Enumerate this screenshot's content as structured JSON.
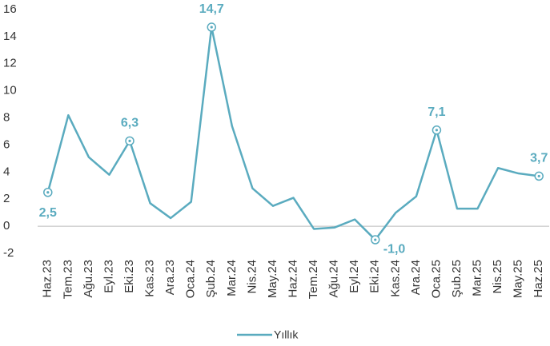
{
  "chart_data": {
    "type": "line",
    "categories": [
      "Haz.23",
      "Tem.23",
      "Ağu.23",
      "Eyl.23",
      "Eki.23",
      "Kas.23",
      "Ara.23",
      "Oca.24",
      "Şub.24",
      "Mar.24",
      "Nis.24",
      "May.24",
      "Haz.24",
      "Tem.24",
      "Ağu.24",
      "Eyl.24",
      "Eki.24",
      "Kas.24",
      "Ara.24",
      "Oca.25",
      "Şub.25",
      "Mar.25",
      "Nis.25",
      "May.25",
      "Haz.25"
    ],
    "series": [
      {
        "name": "Yıllık",
        "color": "#5aabbf",
        "values": [
          2.5,
          8.2,
          5.1,
          3.8,
          6.3,
          1.7,
          0.6,
          1.8,
          14.7,
          7.4,
          2.8,
          1.5,
          2.1,
          -0.2,
          -0.1,
          0.5,
          -1.0,
          1.0,
          2.2,
          7.1,
          1.3,
          1.3,
          4.3,
          3.9,
          3.7
        ],
        "value_labels": [
          "2,5",
          null,
          null,
          null,
          "6,3",
          null,
          null,
          null,
          "14,7",
          null,
          null,
          null,
          null,
          null,
          null,
          null,
          "-1,0",
          null,
          null,
          "7,1",
          null,
          null,
          null,
          null,
          "3,7"
        ]
      }
    ],
    "ylim": [
      -2,
      16
    ],
    "yticks": [
      -2,
      0,
      2,
      4,
      6,
      8,
      10,
      12,
      14,
      16
    ]
  }
}
